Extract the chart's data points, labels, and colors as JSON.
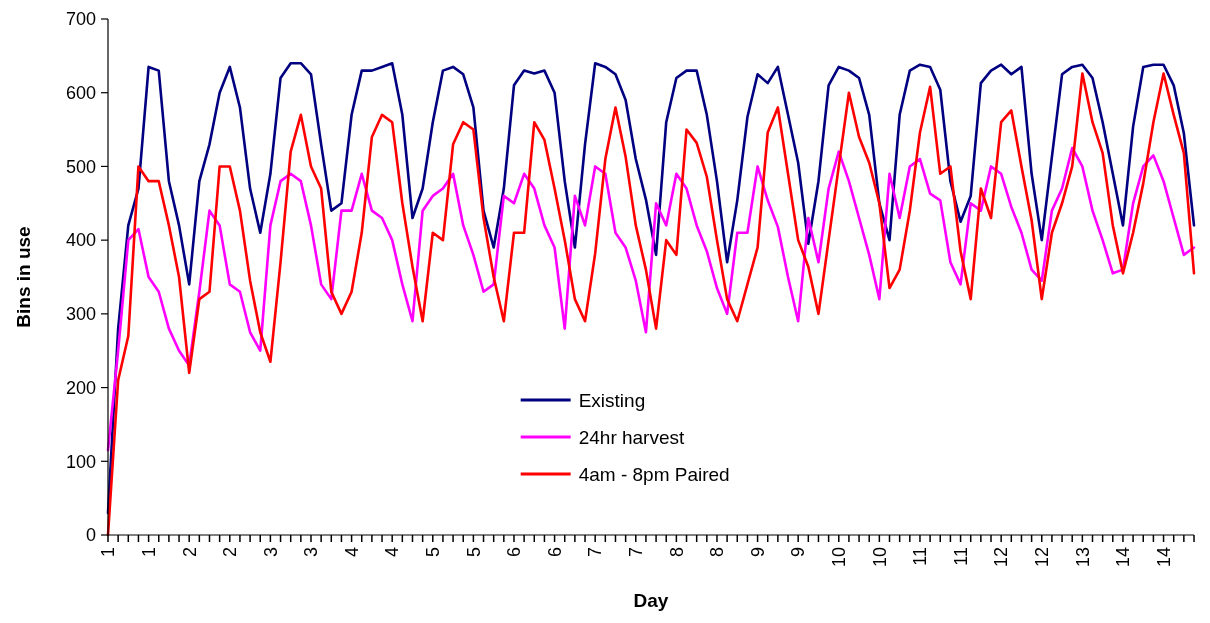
{
  "chart_data": {
    "type": "line",
    "xlabel": "Day",
    "ylabel": "Bins in use",
    "categories": [
      "1",
      null,
      null,
      null,
      "1",
      null,
      null,
      null,
      "2",
      null,
      null,
      null,
      "2",
      null,
      null,
      null,
      "3",
      null,
      null,
      null,
      "3",
      null,
      null,
      null,
      "4",
      null,
      null,
      null,
      "4",
      null,
      null,
      null,
      "5",
      null,
      null,
      null,
      "5",
      null,
      null,
      null,
      "6",
      null,
      null,
      null,
      "6",
      null,
      null,
      null,
      "7",
      null,
      null,
      null,
      "7",
      null,
      null,
      null,
      "8",
      null,
      null,
      null,
      "8",
      null,
      null,
      null,
      "9",
      null,
      null,
      null,
      "9",
      null,
      null,
      null,
      "10",
      null,
      null,
      null,
      "10",
      null,
      null,
      null,
      "11",
      null,
      null,
      null,
      "11",
      null,
      null,
      null,
      "12",
      null,
      null,
      null,
      "12",
      null,
      null,
      null,
      "13",
      null,
      null,
      null,
      "14",
      null,
      null,
      null,
      "14",
      null,
      null,
      null
    ],
    "series": [
      {
        "name": "Existing",
        "color": "#000080",
        "values": [
          30,
          280,
          420,
          470,
          635,
          630,
          480,
          420,
          340,
          480,
          530,
          600,
          635,
          580,
          470,
          410,
          490,
          620,
          640,
          640,
          625,
          530,
          440,
          450,
          570,
          630,
          630,
          635,
          640,
          570,
          430,
          470,
          560,
          630,
          635,
          625,
          580,
          440,
          390,
          470,
          610,
          630,
          626,
          630,
          600,
          480,
          390,
          530,
          640,
          635,
          625,
          590,
          510,
          455,
          380,
          560,
          620,
          630,
          630,
          570,
          480,
          370,
          454,
          567,
          625,
          613,
          635,
          570,
          505,
          395,
          480,
          610,
          635,
          630,
          620,
          570,
          450,
          400,
          570,
          630,
          638,
          635,
          604,
          480,
          425,
          460,
          613,
          630,
          638,
          625,
          635,
          490,
          400,
          513,
          625,
          635,
          638,
          620,
          560,
          490,
          420,
          554,
          635,
          638,
          638,
          610,
          545,
          420
        ]
      },
      {
        "name": "24hr harvest",
        "color": "#ff00ff",
        "values": [
          115,
          250,
          400,
          415,
          350,
          330,
          280,
          250,
          230,
          330,
          440,
          420,
          340,
          330,
          275,
          250,
          420,
          480,
          490,
          480,
          420,
          340,
          320,
          440,
          440,
          490,
          440,
          430,
          400,
          340,
          290,
          440,
          460,
          470,
          490,
          420,
          380,
          330,
          340,
          460,
          450,
          490,
          470,
          420,
          390,
          280,
          460,
          420,
          500,
          490,
          410,
          390,
          345,
          275,
          450,
          420,
          490,
          470,
          420,
          385,
          335,
          300,
          410,
          410,
          500,
          454,
          418,
          350,
          290,
          430,
          370,
          470,
          520,
          480,
          430,
          380,
          320,
          490,
          430,
          500,
          510,
          463,
          454,
          370,
          340,
          450,
          440,
          500,
          490,
          445,
          410,
          360,
          345,
          440,
          470,
          525,
          500,
          440,
          400,
          355,
          360,
          450,
          500,
          515,
          480,
          430,
          380,
          390
        ]
      },
      {
        "name": "4am - 8pm Paired",
        "color": "#ff0000",
        "values": [
          0,
          210,
          270,
          500,
          480,
          480,
          420,
          350,
          220,
          320,
          330,
          500,
          500,
          440,
          345,
          275,
          235,
          370,
          520,
          570,
          500,
          470,
          330,
          300,
          330,
          410,
          540,
          570,
          560,
          450,
          364,
          290,
          410,
          400,
          530,
          560,
          550,
          430,
          350,
          290,
          410,
          410,
          560,
          536,
          470,
          400,
          320,
          290,
          382,
          510,
          580,
          513,
          420,
          360,
          280,
          400,
          380,
          550,
          532,
          486,
          400,
          320,
          290,
          340,
          390,
          546,
          580,
          490,
          400,
          364,
          300,
          400,
          500,
          600,
          540,
          505,
          450,
          335,
          360,
          440,
          546,
          608,
          490,
          500,
          385,
          320,
          470,
          430,
          560,
          576,
          500,
          427,
          320,
          410,
          450,
          500,
          626,
          560,
          518,
          420,
          355,
          410,
          477,
          560,
          626,
          570,
          518,
          355
        ]
      }
    ],
    "ylim": [
      0,
      700
    ],
    "yticks": [
      0,
      100,
      200,
      300,
      400,
      500,
      600,
      700
    ],
    "grid": false,
    "legend": "bottom",
    "marker": "none",
    "line_style": "solid"
  }
}
